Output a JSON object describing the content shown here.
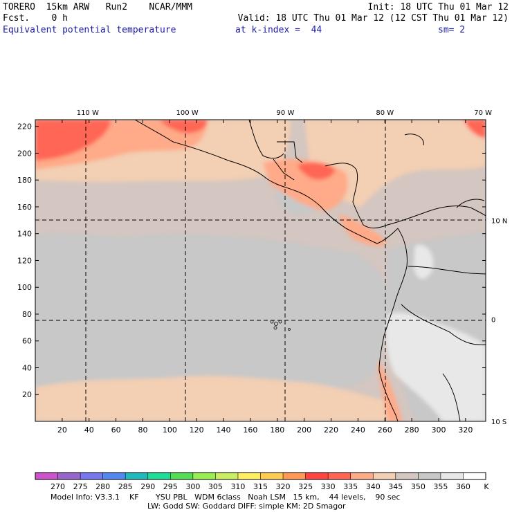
{
  "header": {
    "model_name": "TORERO",
    "resolution": "15km ARW",
    "run": "Run2",
    "org": "NCAR/MMM",
    "init": "Init: 18 UTC Thu 01 Mar 12",
    "fcst_label": "Fcst.",
    "fcst_value": "0 h",
    "valid": "Valid: 18 UTC Thu 01 Mar 12 (12 CST Thu 01 Mar 12)",
    "field": "Equivalent potential temperature",
    "level": "at k-index =  44",
    "smoothing": "sm= 2"
  },
  "footer": {
    "line1": "Model Info: V3.3.1    KF       YSU PBL   WDM 6class   Noah LSM   15 km,    44 levels,    90 sec",
    "line2": "LW: Godd SW: Goddard DIFF: simple KM: 2D Smagor"
  },
  "colors": {
    "land_lines": "#000000",
    "grid_lines": "#000000"
  },
  "chart_data": {
    "type": "heatmap",
    "title": "Equivalent potential temperature",
    "units": "K",
    "x_ticks": [
      20,
      40,
      60,
      80,
      100,
      120,
      140,
      160,
      180,
      200,
      220,
      240,
      260,
      280,
      300,
      320
    ],
    "y_ticks": [
      20,
      40,
      60,
      80,
      100,
      120,
      140,
      160,
      180,
      200,
      220
    ],
    "xlim": [
      0,
      335
    ],
    "ylim": [
      0,
      225
    ],
    "lon_labels": [
      {
        "label": "110 W",
        "x": 39
      },
      {
        "label": "100 W",
        "x": 113
      },
      {
        "label": "90 W",
        "x": 186
      },
      {
        "label": "80 W",
        "x": 260
      },
      {
        "label": "70 W",
        "x": 333
      }
    ],
    "lat_labels": [
      {
        "label": "10 N",
        "y": 150
      },
      {
        "label": "0",
        "y": 76
      },
      {
        "label": "10 S",
        "y": 0
      }
    ],
    "colorbar": {
      "levels": [
        270,
        275,
        280,
        285,
        290,
        295,
        300,
        305,
        310,
        315,
        320,
        325,
        330,
        335,
        340,
        345,
        350,
        355,
        360
      ],
      "unit_label": "K",
      "colors": [
        "#cc55cc",
        "#9966cc",
        "#7777ee",
        "#5588ee",
        "#22bbbb",
        "#22dd99",
        "#55dd55",
        "#99ee55",
        "#ccee66",
        "#ffee66",
        "#ffcc55",
        "#ff9955",
        "#ff4444",
        "#ff6655",
        "#ffaa88",
        "#f3cfb3",
        "#d4c6c0",
        "#c8c8c8",
        "#e8e8e8",
        "#ffffff"
      ]
    }
  }
}
